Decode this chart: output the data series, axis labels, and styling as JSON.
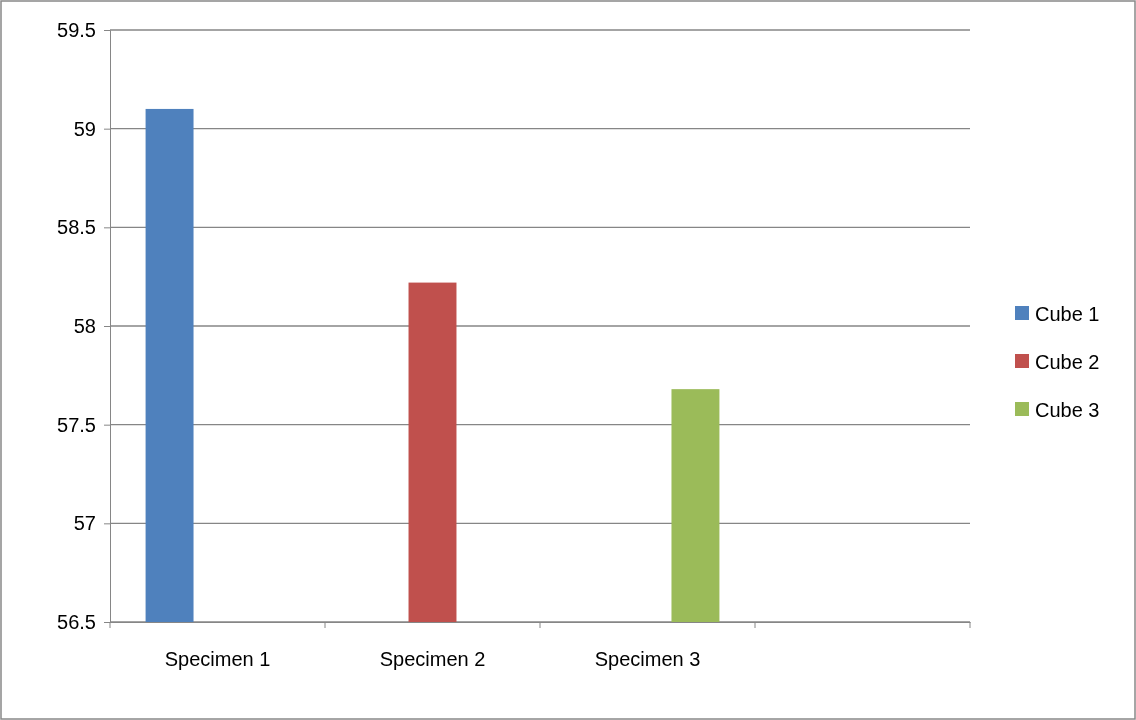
{
  "chart_data": {
    "type": "bar",
    "categories": [
      "Specimen 1",
      "Specimen 2",
      "Specimen 3",
      null
    ],
    "series": [
      {
        "name": "Cube 1",
        "color": "#4f81bd",
        "values": [
          59.1,
          null,
          null,
          null
        ]
      },
      {
        "name": "Cube 2",
        "color": "#c0504d",
        "values": [
          null,
          58.22,
          null,
          null
        ]
      },
      {
        "name": "Cube 3",
        "color": "#9bbb59",
        "values": [
          null,
          null,
          57.68,
          null
        ]
      }
    ],
    "ylim": [
      56.5,
      59.5
    ],
    "yticks": [
      56.5,
      57,
      57.5,
      58,
      58.5,
      59,
      59.5
    ],
    "grid": "y",
    "legend": "right"
  }
}
